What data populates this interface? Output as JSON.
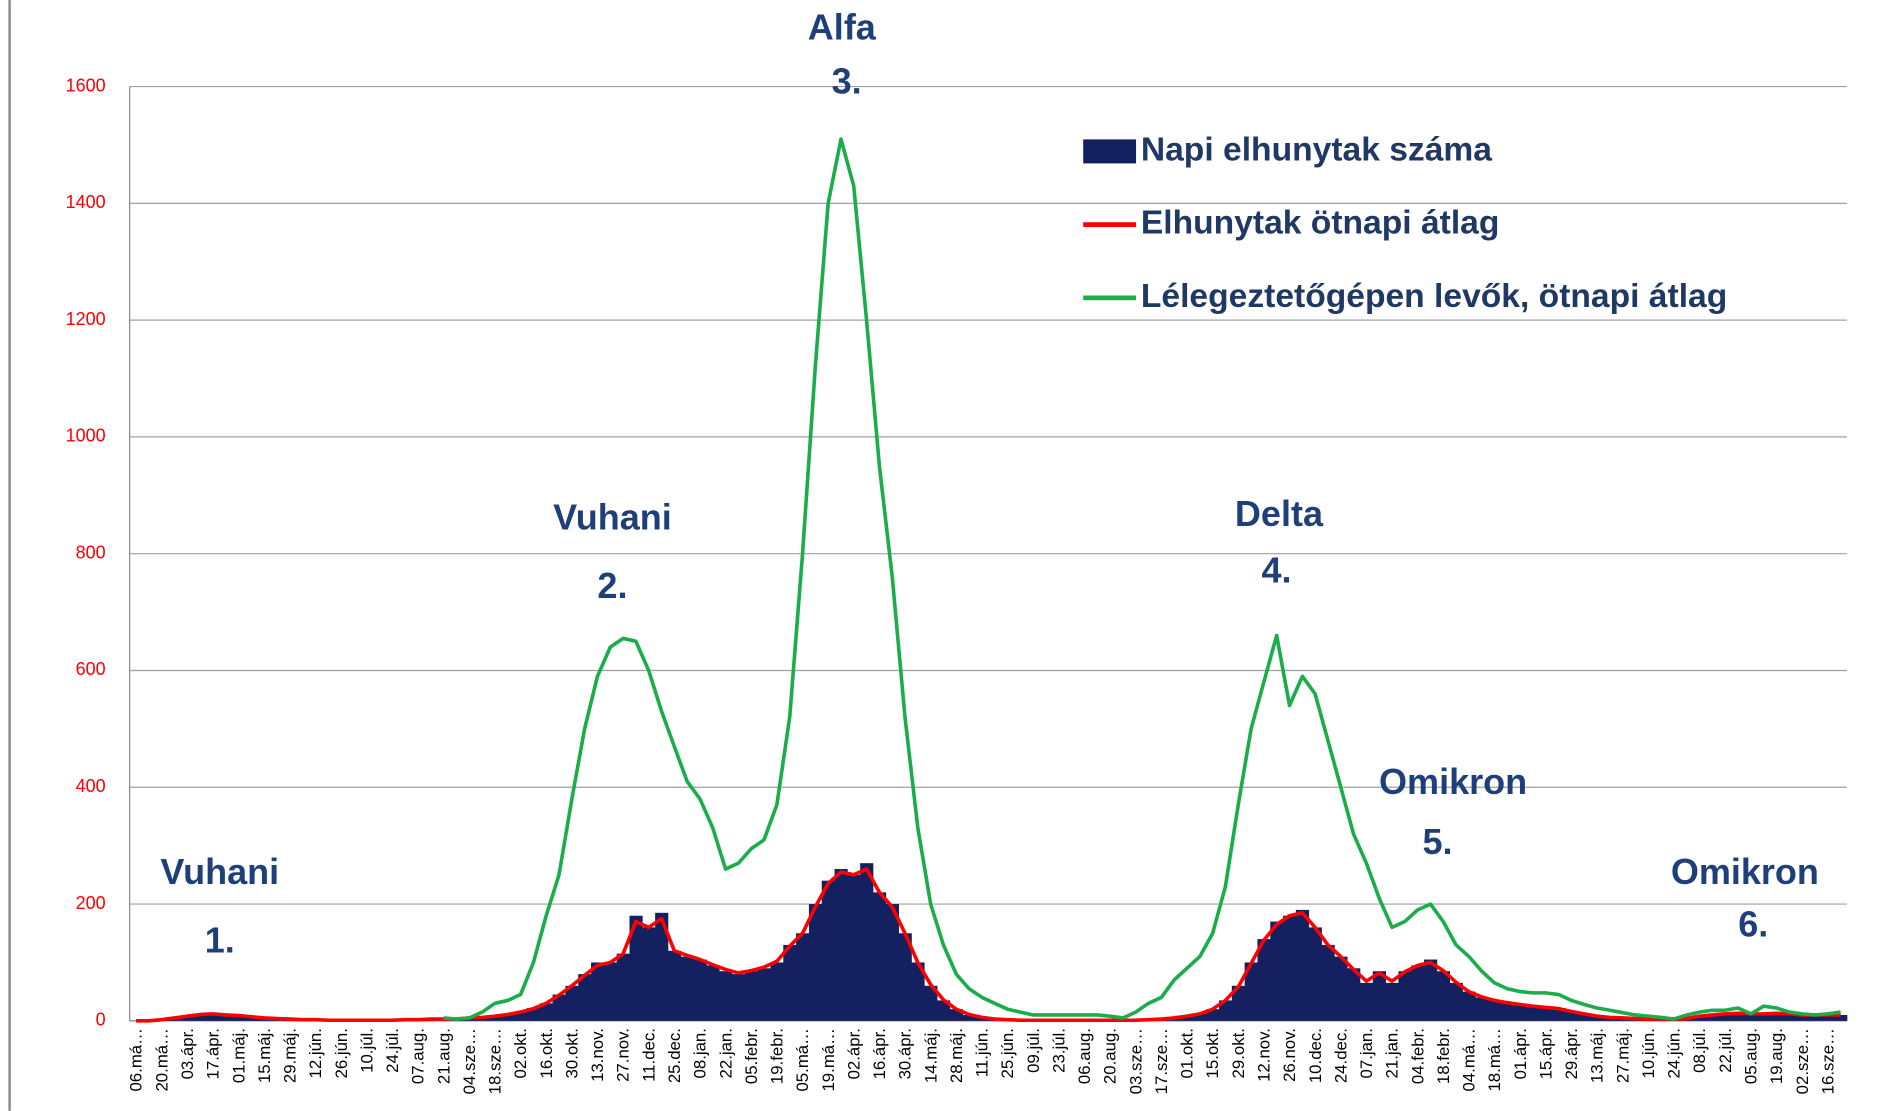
{
  "chart_data": {
    "type": "bar-line",
    "categories": [
      "06.má…",
      null,
      "20.má…",
      null,
      "03.ápr.",
      null,
      "17.ápr.",
      null,
      "01.máj.",
      null,
      "15.máj.",
      null,
      "29.máj.",
      null,
      "12.jún.",
      null,
      "26.jún.",
      null,
      "10.júl.",
      null,
      "24.júl.",
      null,
      "07.aug.",
      null,
      "21.aug.",
      null,
      "04.sze…",
      null,
      "18.sze…",
      null,
      "02.okt.",
      null,
      "16.okt.",
      null,
      "30.okt.",
      null,
      "13.nov.",
      null,
      "27.nov.",
      null,
      "11.dec.",
      null,
      "25.dec.",
      null,
      "08.jan.",
      null,
      "22.jan.",
      null,
      "05.febr.",
      null,
      "19.febr.",
      null,
      "05.má…",
      null,
      "19.má…",
      null,
      "02.ápr.",
      null,
      "16.ápr.",
      null,
      "30.ápr.",
      null,
      "14.máj.",
      null,
      "28.máj.",
      null,
      "11.jún.",
      null,
      "25.jún.",
      null,
      "09.júl.",
      null,
      "23.júl.",
      null,
      "06.aug.",
      null,
      "20.aug.",
      null,
      "03.sze…",
      null,
      "17.sze…",
      null,
      "01.okt.",
      null,
      "15.okt.",
      null,
      "29.okt.",
      null,
      "12.nov.",
      null,
      "26.nov.",
      null,
      "10.dec.",
      null,
      "24.dec.",
      null,
      "07.jan.",
      null,
      "21.jan.",
      null,
      "04.febr.",
      null,
      "18.febr.",
      null,
      "04.má…",
      null,
      "18.má…",
      null,
      "01.ápr.",
      null,
      "15.ápr.",
      null,
      "29.ápr.",
      null,
      "13.máj.",
      null,
      "27.máj.",
      null,
      "10.jún.",
      null,
      "24.jún.",
      null,
      "08.júl.",
      null,
      "22.júl.",
      null,
      "05.aug.",
      null,
      "19.aug.",
      null,
      "02.sze…",
      null,
      "16.sze…",
      null
    ],
    "series": [
      {
        "name": "Napi elhunytak száma",
        "type": "bar",
        "color": "#14205f",
        "values": [
          0,
          0,
          2,
          5,
          8,
          12,
          13,
          10,
          9,
          7,
          5,
          4,
          3,
          2,
          2,
          1,
          1,
          1,
          1,
          1,
          1,
          2,
          2,
          3,
          3,
          3,
          5,
          6,
          8,
          12,
          15,
          22,
          30,
          45,
          60,
          80,
          100,
          100,
          115,
          180,
          160,
          185,
          120,
          110,
          105,
          95,
          85,
          80,
          85,
          90,
          100,
          130,
          150,
          200,
          240,
          260,
          250,
          270,
          220,
          200,
          150,
          100,
          60,
          35,
          20,
          10,
          6,
          3,
          2,
          1,
          1,
          1,
          1,
          1,
          1,
          1,
          1,
          1,
          1,
          2,
          3,
          5,
          8,
          12,
          20,
          35,
          60,
          100,
          140,
          170,
          180,
          190,
          160,
          130,
          110,
          90,
          65,
          85,
          65,
          85,
          95,
          105,
          85,
          65,
          50,
          40,
          35,
          30,
          28,
          25,
          22,
          22,
          15,
          12,
          8,
          6,
          5,
          4,
          3,
          3,
          3,
          4,
          8,
          10,
          12,
          14,
          12,
          12,
          14,
          12,
          10,
          10,
          10,
          10
        ]
      },
      {
        "name": "Elhunytak ötnapi átlag",
        "type": "line",
        "color": "#ff0000",
        "values": [
          0,
          0,
          2,
          5,
          8,
          11,
          12,
          10,
          9,
          7,
          5,
          4,
          3,
          2,
          2,
          1,
          1,
          1,
          1,
          1,
          1,
          2,
          2,
          3,
          3,
          3,
          5,
          6,
          8,
          11,
          15,
          21,
          30,
          44,
          60,
          78,
          95,
          100,
          115,
          170,
          160,
          175,
          120,
          112,
          105,
          96,
          88,
          82,
          86,
          92,
          102,
          128,
          150,
          195,
          235,
          255,
          250,
          260,
          220,
          195,
          150,
          100,
          62,
          36,
          20,
          11,
          6,
          3,
          2,
          1,
          1,
          1,
          1,
          1,
          1,
          1,
          1,
          1,
          1,
          2,
          3,
          5,
          8,
          12,
          20,
          35,
          58,
          98,
          138,
          165,
          180,
          185,
          160,
          130,
          110,
          88,
          68,
          82,
          68,
          84,
          95,
          100,
          86,
          66,
          50,
          41,
          35,
          31,
          28,
          25,
          23,
          21,
          16,
          12,
          8,
          6,
          5,
          4,
          3,
          3,
          3,
          4,
          8,
          10,
          12,
          13,
          12,
          12,
          13,
          12,
          10,
          10,
          10,
          10
        ]
      },
      {
        "name": "Lélegeztetőgépen levők, ötnapi átlag",
        "type": "line",
        "color": "#1aad4a",
        "values": [
          null,
          null,
          null,
          null,
          null,
          null,
          null,
          null,
          null,
          null,
          null,
          null,
          null,
          null,
          null,
          null,
          null,
          null,
          null,
          null,
          null,
          null,
          null,
          null,
          5,
          3,
          5,
          15,
          30,
          35,
          45,
          100,
          180,
          250,
          380,
          500,
          590,
          640,
          655,
          650,
          600,
          530,
          470,
          410,
          380,
          330,
          260,
          270,
          295,
          310,
          370,
          520,
          800,
          1120,
          1400,
          1510,
          1430,
          1200,
          950,
          760,
          520,
          330,
          200,
          130,
          80,
          55,
          40,
          30,
          20,
          15,
          10,
          10,
          10,
          10,
          10,
          10,
          8,
          5,
          15,
          30,
          40,
          70,
          90,
          110,
          150,
          230,
          370,
          500,
          580,
          660,
          540,
          590,
          560,
          480,
          400,
          320,
          270,
          210,
          160,
          170,
          190,
          200,
          170,
          130,
          110,
          85,
          65,
          55,
          50,
          48,
          48,
          45,
          35,
          28,
          22,
          18,
          14,
          10,
          8,
          6,
          3,
          10,
          15,
          18,
          18,
          22,
          12,
          25,
          22,
          15,
          12,
          10,
          12,
          15
        ]
      }
    ],
    "ylim": [
      0,
      1600
    ],
    "yticks": [
      0,
      200,
      400,
      600,
      800,
      1000,
      1200,
      1400,
      1600
    ],
    "grid": true,
    "legend": "upper right",
    "annotations": [
      {
        "label": "Vuhani",
        "number": "1."
      },
      {
        "label": "Vuhani",
        "number": "2."
      },
      {
        "label": "Alfa",
        "number": "3."
      },
      {
        "label": "Delta",
        "number": "4."
      },
      {
        "label": "Omikron",
        "number": "5."
      },
      {
        "label": "Omikron",
        "number": "6."
      }
    ]
  }
}
